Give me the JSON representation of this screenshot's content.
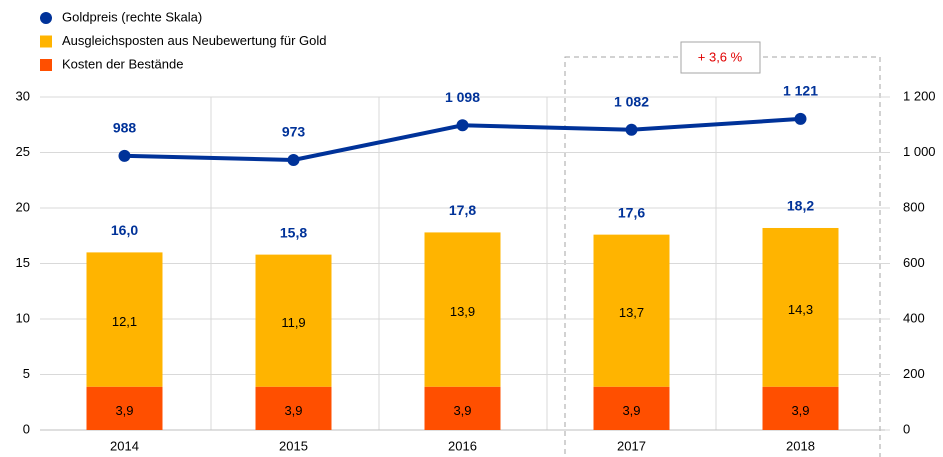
{
  "chart_data": {
    "type": "bar",
    "stacked": true,
    "categories": [
      "2014",
      "2015",
      "2016",
      "2017",
      "2018"
    ],
    "series": [
      {
        "name": "Kosten der Bestände",
        "color": "#ff4f00",
        "values": [
          3.9,
          3.9,
          3.9,
          3.9,
          3.9
        ],
        "value_labels": [
          "3,9",
          "3,9",
          "3,9",
          "3,9",
          "3,9"
        ]
      },
      {
        "name": "Ausgleichsposten aus Neubewertung für Gold",
        "color": "#ffb400",
        "values": [
          12.1,
          11.9,
          13.9,
          13.7,
          14.3
        ],
        "value_labels": [
          "12,1",
          "11,9",
          "13,9",
          "13,7",
          "14,3"
        ]
      },
      {
        "name": "Goldpreis (rechte Skala)",
        "type": "line",
        "axis": "y2",
        "color": "#003299",
        "values": [
          988,
          973,
          1098,
          1082,
          1121
        ],
        "value_labels": [
          "988",
          "973",
          "1 098",
          "1 082",
          "1 121"
        ]
      }
    ],
    "totals": {
      "values": [
        16.0,
        15.8,
        17.8,
        17.6,
        18.2
      ],
      "value_labels": [
        "16,0",
        "15,8",
        "17,8",
        "17,6",
        "18,2"
      ]
    },
    "ylim": [
      0,
      30
    ],
    "yticks": [
      0,
      5,
      10,
      15,
      20,
      25,
      30
    ],
    "y2lim": [
      0,
      1200
    ],
    "y2ticks": [
      0,
      200,
      400,
      600,
      800,
      {
        "value": 1000,
        "label": "1 000"
      },
      {
        "value": 1200,
        "label": "1 200"
      }
    ],
    "annotation": "+ 3,6 %",
    "grid": true
  }
}
